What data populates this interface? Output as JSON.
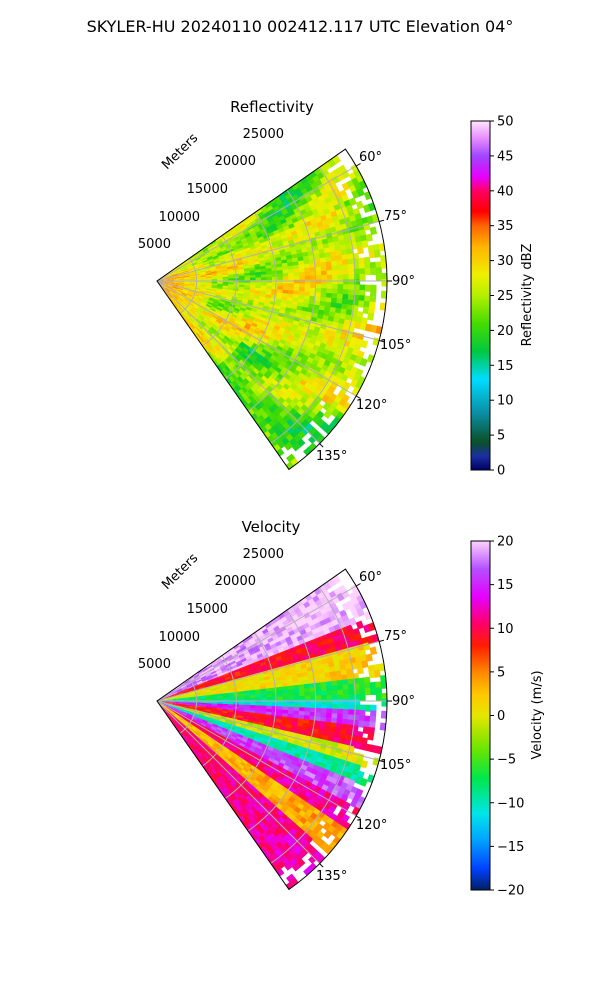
{
  "page_title": "SKYLER-HU  20240110  002412.117 UTC Elevation 04°",
  "chart_data": [
    {
      "type": "heatmap",
      "subtype": "polar-sector (PPI)",
      "title": "Reflectivity",
      "range_label": "Meters",
      "range_ticks": [
        5000,
        10000,
        15000,
        20000,
        25000
      ],
      "range_max": 29000,
      "azimuth_ticks": [
        "60°",
        "75°",
        "90°",
        "105°",
        "120°",
        "135°"
      ],
      "azimuth_range_deg": [
        55,
        145
      ],
      "colorbar": {
        "label": "Reflectivity dBZ",
        "min": 0,
        "max": 50,
        "ticks": [
          "0",
          "5",
          "10",
          "15",
          "20",
          "25",
          "30",
          "35",
          "40",
          "45",
          "50"
        ]
      },
      "dominant_values": "20-30 dBZ over most of the sector, 30-36 dBZ near the radar",
      "grid": true
    },
    {
      "type": "heatmap",
      "subtype": "polar-sector (PPI)",
      "title": "Velocity",
      "range_label": "Meters",
      "range_ticks": [
        5000,
        10000,
        15000,
        20000,
        25000
      ],
      "range_max": 29000,
      "azimuth_ticks": [
        "60°",
        "75°",
        "90°",
        "105°",
        "120°",
        "135°"
      ],
      "azimuth_range_deg": [
        55,
        145
      ],
      "colorbar": {
        "label": "Velocity (m/s)",
        "min": -20,
        "max": 20,
        "ticks": [
          "−20",
          "−15",
          "−10",
          "−5",
          "0",
          "5",
          "10",
          "15",
          "20"
        ]
      },
      "dominant_values": "about -10 m/s near 90°, +10 to +15 m/s bands near 100° and 120°, +15 to +20 m/s at 60°",
      "grid": true
    }
  ],
  "colors": {
    "reflectivity_scale": [
      "#000064",
      "#1a2fa0",
      "#0a5028",
      "#0a8ca0",
      "#00dcff",
      "#00c840",
      "#46dc00",
      "#b4f000",
      "#f0f000",
      "#ffb400",
      "#ff6400",
      "#ff0000",
      "#ff0064",
      "#e600ff",
      "#a046ff",
      "#e68cff",
      "#ffe6ff"
    ],
    "velocity_scale": [
      "#002060",
      "#0040ff",
      "#00a0ff",
      "#00e6e6",
      "#00e64d",
      "#66e600",
      "#b4e600",
      "#e6e600",
      "#ffc800",
      "#ff8c00",
      "#ff1e00",
      "#ff0064",
      "#e600ff",
      "#b450ff",
      "#ffd2ff"
    ]
  }
}
